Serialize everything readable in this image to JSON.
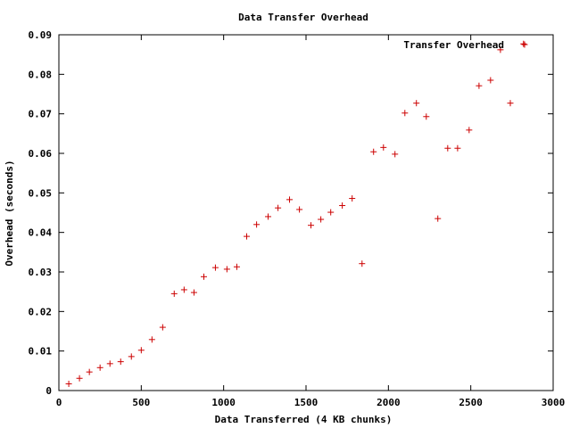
{
  "chart_data": {
    "type": "scatter",
    "title": "Data Transfer Overhead",
    "xlabel": "Data Transferred (4 KB chunks)",
    "ylabel": "Overhead (seconds)",
    "xlim": [
      0,
      3000
    ],
    "ylim": [
      0,
      0.09
    ],
    "xticks": [
      "0",
      "500",
      "1000",
      "1500",
      "2000",
      "2500",
      "3000"
    ],
    "yticks": [
      "0",
      "0.01",
      "0.02",
      "0.03",
      "0.04",
      "0.05",
      "0.06",
      "0.07",
      "0.08",
      "0.09"
    ],
    "grid": false,
    "legend_position": "top-right",
    "marker_color": "#cc0000",
    "series": [
      {
        "name": "Transfer Overhead",
        "x": [
          60,
          125,
          185,
          250,
          310,
          375,
          440,
          500,
          565,
          630,
          700,
          760,
          820,
          880,
          950,
          1020,
          1080,
          1140,
          1200,
          1270,
          1330,
          1400,
          1460,
          1530,
          1590,
          1650,
          1720,
          1780,
          1840,
          1910,
          1970,
          2040,
          2100,
          2170,
          2230,
          2300,
          2360,
          2420,
          2490,
          2550,
          2620,
          2680,
          2740,
          2820
        ],
        "y": [
          0.0017,
          0.0031,
          0.0047,
          0.0058,
          0.0068,
          0.0073,
          0.0086,
          0.0102,
          0.0129,
          0.016,
          0.0245,
          0.0255,
          0.0248,
          0.0288,
          0.0311,
          0.0307,
          0.0313,
          0.039,
          0.042,
          0.044,
          0.0462,
          0.0483,
          0.0458,
          0.0418,
          0.0433,
          0.0451,
          0.0468,
          0.0486,
          0.0321,
          0.0604,
          0.0615,
          0.0598,
          0.0702,
          0.0727,
          0.0693,
          0.0435,
          0.0613,
          0.0613,
          0.0659,
          0.0771,
          0.0785,
          0.0862,
          0.0727,
          0.0877
        ]
      }
    ]
  }
}
